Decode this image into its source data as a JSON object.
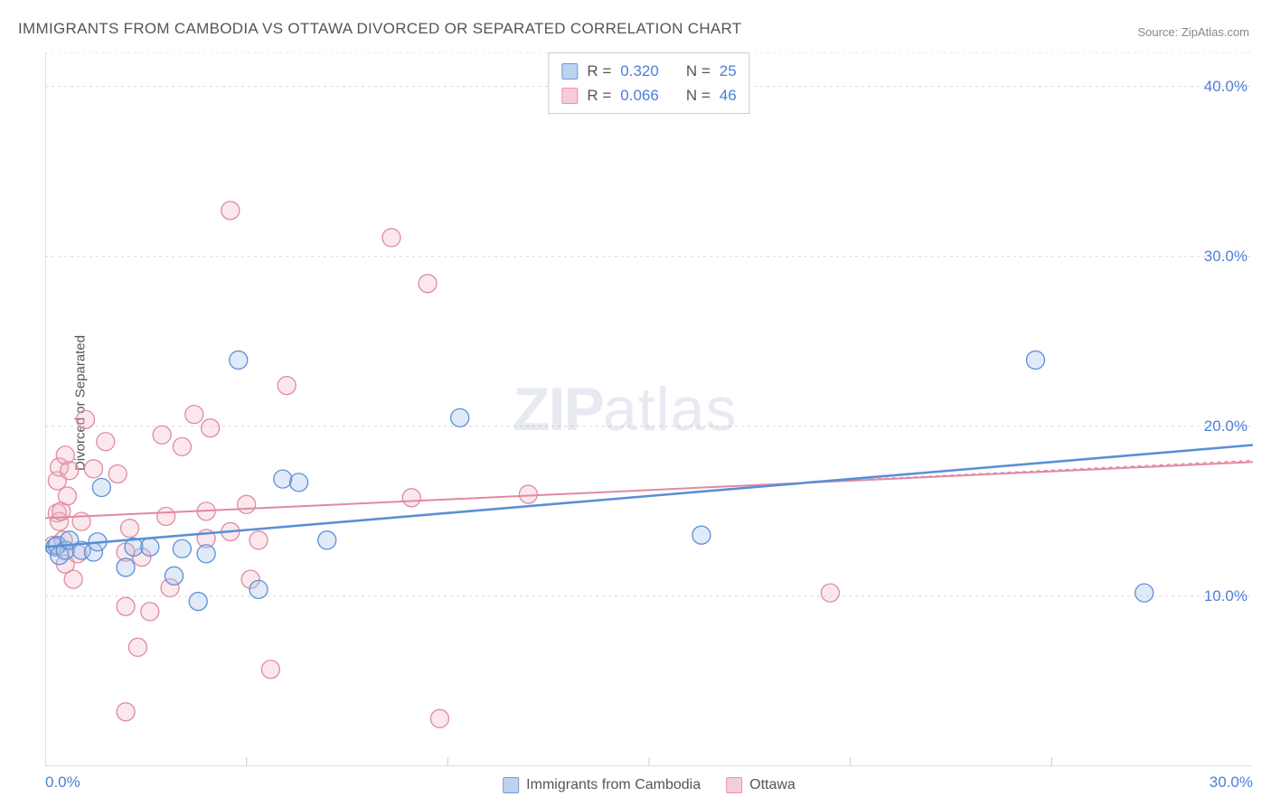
{
  "title": "IMMIGRANTS FROM CAMBODIA VS OTTAWA DIVORCED OR SEPARATED CORRELATION CHART",
  "source": "Source: ZipAtlas.com",
  "ylabel": "Divorced or Separated",
  "watermark_a": "ZIP",
  "watermark_b": "atlas",
  "chart": {
    "type": "scatter",
    "background_color": "#ffffff",
    "grid_color": "#d8d8d8",
    "axis_color": "#cccccc",
    "tick_font_color": "#4a7fd8",
    "tick_fontsize": 17,
    "xlim": [
      0,
      30
    ],
    "ylim": [
      0,
      42
    ],
    "xticks": [
      0,
      30
    ],
    "xtick_labels": [
      "0.0%",
      "30.0%"
    ],
    "yticks": [
      10,
      20,
      30,
      40
    ],
    "ytick_labels": [
      "10.0%",
      "20.0%",
      "30.0%",
      "40.0%"
    ],
    "marker_radius": 10,
    "marker_stroke_width": 1.3,
    "marker_fill_opacity": 0.32,
    "series": [
      {
        "id": "cambodia",
        "label": "Immigrants from Cambodia",
        "color_stroke": "#5b8fd6",
        "color_fill": "#9fbfe8",
        "swatch_fill": "#bcd3ef",
        "swatch_stroke": "#6d9ad9",
        "r_value": "0.320",
        "n_value": "25",
        "trend": {
          "x1": 0,
          "y1": 12.9,
          "x2": 30,
          "y2": 18.9,
          "stroke_width": 2.6,
          "dash": ""
        },
        "points": [
          [
            0.25,
            12.9
          ],
          [
            0.3,
            13.0
          ],
          [
            0.35,
            12.4
          ],
          [
            0.5,
            12.7
          ],
          [
            0.6,
            13.3
          ],
          [
            0.9,
            12.7
          ],
          [
            1.2,
            12.6
          ],
          [
            1.3,
            13.2
          ],
          [
            1.4,
            16.4
          ],
          [
            2.0,
            11.7
          ],
          [
            2.2,
            12.9
          ],
          [
            2.6,
            12.9
          ],
          [
            3.2,
            11.2
          ],
          [
            3.4,
            12.8
          ],
          [
            3.8,
            9.7
          ],
          [
            4.0,
            12.5
          ],
          [
            4.8,
            23.9
          ],
          [
            5.3,
            10.4
          ],
          [
            5.9,
            16.9
          ],
          [
            6.3,
            16.7
          ],
          [
            7.0,
            13.3
          ],
          [
            10.3,
            20.5
          ],
          [
            16.3,
            13.6
          ],
          [
            24.6,
            23.9
          ],
          [
            27.3,
            10.2
          ]
        ]
      },
      {
        "id": "ottawa",
        "label": "Ottawa",
        "color_stroke": "#e08aa0",
        "color_fill": "#f1b9c7",
        "swatch_fill": "#f6cdd7",
        "swatch_stroke": "#e595aa",
        "r_value": "0.066",
        "n_value": "46",
        "trend": {
          "x1": 0,
          "y1": 14.6,
          "x2": 30,
          "y2": 17.9,
          "stroke_width": 2.0,
          "dash": ""
        },
        "trend_ext": {
          "x1": 20.5,
          "y1": 16.9,
          "x2": 30,
          "y2": 18.0,
          "stroke_width": 1.2,
          "dash": "4,4"
        },
        "points": [
          [
            0.2,
            13.0
          ],
          [
            0.3,
            14.9
          ],
          [
            0.3,
            16.8
          ],
          [
            0.35,
            14.4
          ],
          [
            0.35,
            17.6
          ],
          [
            0.4,
            15.0
          ],
          [
            0.45,
            13.3
          ],
          [
            0.5,
            18.3
          ],
          [
            0.5,
            11.9
          ],
          [
            0.55,
            15.9
          ],
          [
            0.6,
            17.4
          ],
          [
            0.7,
            11.0
          ],
          [
            0.8,
            12.5
          ],
          [
            0.9,
            14.4
          ],
          [
            1.0,
            20.4
          ],
          [
            1.2,
            17.5
          ],
          [
            1.5,
            19.1
          ],
          [
            1.8,
            17.2
          ],
          [
            2.0,
            9.4
          ],
          [
            2.0,
            3.2
          ],
          [
            2.0,
            12.6
          ],
          [
            2.1,
            14.0
          ],
          [
            2.3,
            7.0
          ],
          [
            2.4,
            12.3
          ],
          [
            2.6,
            9.1
          ],
          [
            2.9,
            19.5
          ],
          [
            3.0,
            14.7
          ],
          [
            3.1,
            10.5
          ],
          [
            3.4,
            18.8
          ],
          [
            3.7,
            20.7
          ],
          [
            4.0,
            13.4
          ],
          [
            4.0,
            15.0
          ],
          [
            4.1,
            19.9
          ],
          [
            4.6,
            13.8
          ],
          [
            4.6,
            32.7
          ],
          [
            5.0,
            15.4
          ],
          [
            5.1,
            11.0
          ],
          [
            5.3,
            13.3
          ],
          [
            5.6,
            5.7
          ],
          [
            6.0,
            22.4
          ],
          [
            8.6,
            31.1
          ],
          [
            9.1,
            15.8
          ],
          [
            9.5,
            28.4
          ],
          [
            9.8,
            2.8
          ],
          [
            12.0,
            16.0
          ],
          [
            19.5,
            10.2
          ]
        ]
      }
    ],
    "legend_top": {
      "R_label": "R =",
      "N_label": "N ="
    },
    "legend_bottom_labels": [
      "Immigrants from Cambodia",
      "Ottawa"
    ]
  }
}
